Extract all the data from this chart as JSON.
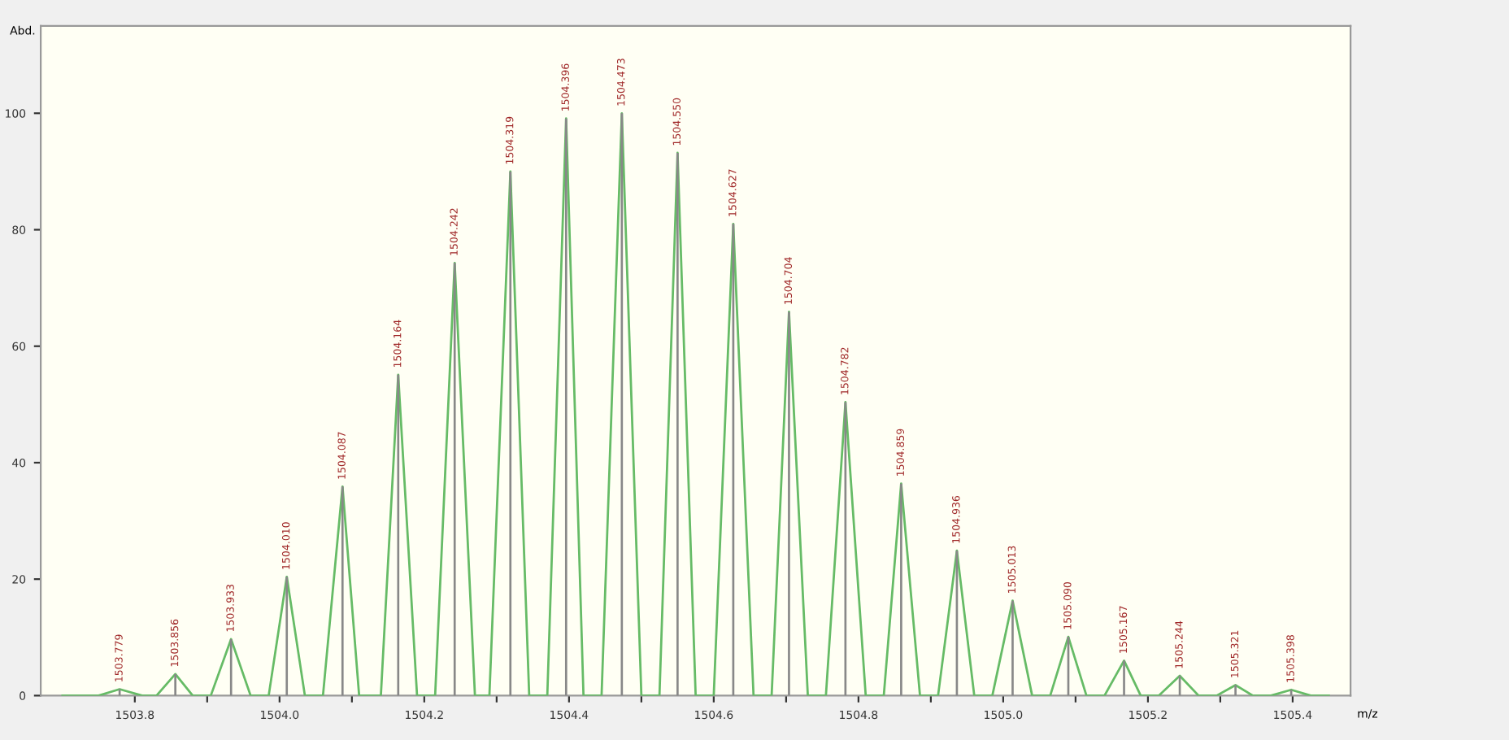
{
  "chart_data": {
    "type": "line",
    "ylabel": "Abd.",
    "xlabel": "m/z",
    "xlim": [
      1503.67,
      1505.48
    ],
    "ylim": [
      0,
      115
    ],
    "xticks": [
      1503.8,
      {
        "value": 1503.9,
        "label": null
      },
      {
        "value": 1504.0,
        "label": "1504.0"
      },
      {
        "value": 1504.1,
        "label": null
      },
      1504.2,
      {
        "value": 1504.3,
        "label": null
      },
      1504.4,
      {
        "value": 1504.5,
        "label": null
      },
      1504.6,
      {
        "value": 1504.7,
        "label": null
      },
      1504.8,
      {
        "value": 1504.9,
        "label": null
      },
      {
        "value": 1505.0,
        "label": "1505.0"
      },
      {
        "value": 1505.1,
        "label": null
      },
      1505.2,
      {
        "value": 1505.3,
        "label": null
      },
      1505.4
    ],
    "yticks": [
      0,
      20,
      40,
      60,
      80,
      100
    ],
    "grid": false,
    "marker": "none",
    "line_style": "solid",
    "series": [
      {
        "color": "#66bb66",
        "x": [
          1503.7,
          1503.75,
          1503.779,
          1503.81,
          1503.83,
          1503.856,
          1503.88,
          1503.905,
          1503.933,
          1503.96,
          1503.985,
          1504.01,
          1504.035,
          1504.06,
          1504.087,
          1504.11,
          1504.14,
          1504.164,
          1504.19,
          1504.215,
          1504.242,
          1504.27,
          1504.29,
          1504.319,
          1504.345,
          1504.37,
          1504.396,
          1504.42,
          1504.445,
          1504.473,
          1504.5,
          1504.525,
          1504.55,
          1504.575,
          1504.6,
          1504.627,
          1504.655,
          1504.68,
          1504.704,
          1504.73,
          1504.755,
          1504.782,
          1504.81,
          1504.835,
          1504.859,
          1504.885,
          1504.91,
          1504.936,
          1504.96,
          1504.985,
          1505.013,
          1505.04,
          1505.065,
          1505.09,
          1505.115,
          1505.14,
          1505.167,
          1505.19,
          1505.215,
          1505.244,
          1505.27,
          1505.295,
          1505.321,
          1505.345,
          1505.37,
          1505.398,
          1505.425,
          1505.45
        ],
        "values": [
          0,
          0,
          1.1,
          0,
          0,
          3.7,
          0,
          0,
          9.7,
          0,
          0,
          20.4,
          0,
          0,
          35.9,
          0,
          0,
          55.1,
          0,
          0,
          74.3,
          0,
          0,
          90.0,
          0,
          0,
          99.1,
          0,
          0,
          100.0,
          0,
          0,
          93.2,
          0,
          0,
          81.0,
          0,
          0,
          65.9,
          0,
          0,
          50.4,
          0,
          0,
          36.4,
          0,
          0,
          24.9,
          0,
          0,
          16.3,
          0,
          0,
          10.1,
          0,
          0,
          6.0,
          0,
          0,
          3.4,
          0,
          0,
          1.8,
          0,
          0,
          1.0,
          0,
          0
        ]
      },
      {
        "type": "bar",
        "color": "#888888",
        "x": [
          1503.779,
          1503.856,
          1503.933,
          1504.01,
          1504.087,
          1504.164,
          1504.242,
          1504.319,
          1504.396,
          1504.473,
          1504.55,
          1504.627,
          1504.704,
          1504.782,
          1504.859,
          1504.936,
          1505.013,
          1505.09,
          1505.167,
          1505.244,
          1505.321,
          1505.398
        ],
        "values": [
          1.1,
          3.7,
          9.7,
          20.4,
          35.9,
          55.1,
          74.3,
          90.0,
          99.1,
          100.0,
          93.2,
          81.0,
          65.9,
          50.4,
          36.4,
          24.9,
          16.3,
          10.1,
          6.0,
          3.4,
          1.8,
          1.0
        ]
      }
    ],
    "annotations": [
      {
        "text": "1503.779",
        "x": 1503.779,
        "y": 1.1
      },
      {
        "text": "1503.856",
        "x": 1503.856,
        "y": 3.7
      },
      {
        "text": "1503.933",
        "x": 1503.933,
        "y": 9.7
      },
      {
        "text": "1504.010",
        "x": 1504.01,
        "y": 20.4
      },
      {
        "text": "1504.087",
        "x": 1504.087,
        "y": 35.9
      },
      {
        "text": "1504.164",
        "x": 1504.164,
        "y": 55.1
      },
      {
        "text": "1504.242",
        "x": 1504.242,
        "y": 74.3
      },
      {
        "text": "1504.319",
        "x": 1504.319,
        "y": 90.0
      },
      {
        "text": "1504.396",
        "x": 1504.396,
        "y": 99.1
      },
      {
        "text": "1504.473",
        "x": 1504.473,
        "y": 100.0
      },
      {
        "text": "1504.550",
        "x": 1504.55,
        "y": 93.2
      },
      {
        "text": "1504.627",
        "x": 1504.627,
        "y": 81.0
      },
      {
        "text": "1504.704",
        "x": 1504.704,
        "y": 65.9
      },
      {
        "text": "1504.782",
        "x": 1504.782,
        "y": 50.4
      },
      {
        "text": "1504.859",
        "x": 1504.859,
        "y": 36.4
      },
      {
        "text": "1504.936",
        "x": 1504.936,
        "y": 24.9
      },
      {
        "text": "1505.013",
        "x": 1505.013,
        "y": 16.3
      },
      {
        "text": "1505.090",
        "x": 1505.09,
        "y": 10.1
      },
      {
        "text": "1505.167",
        "x": 1505.167,
        "y": 6.0
      },
      {
        "text": "1505.244",
        "x": 1505.244,
        "y": 3.4
      },
      {
        "text": "1505.321",
        "x": 1505.321,
        "y": 1.8
      },
      {
        "text": "1505.398",
        "x": 1505.398,
        "y": 1.0
      }
    ]
  }
}
